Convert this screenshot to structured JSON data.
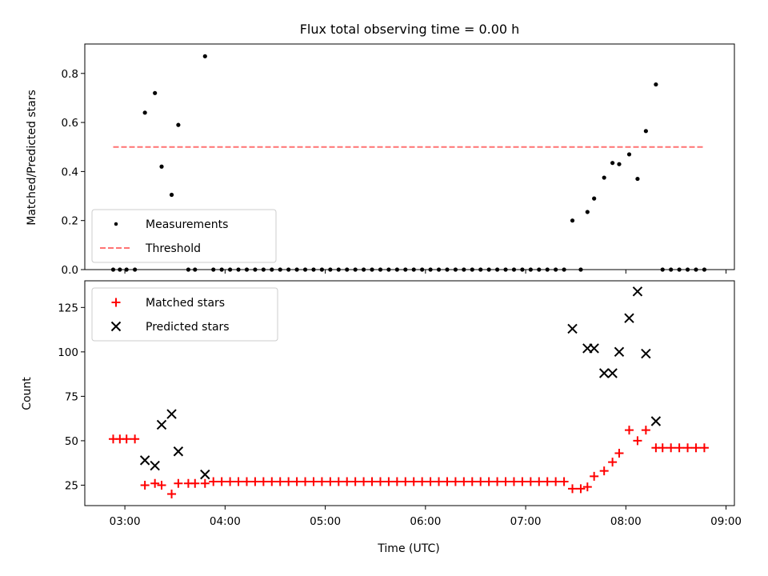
{
  "chart_data": [
    {
      "type": "scatter",
      "title": "Flux total observing time = 0.00 h",
      "xlabel": "",
      "ylabel": "Matched/Predicted stars",
      "xlim": [
        "02:36",
        "09:05"
      ],
      "ylim": [
        0,
        0.92
      ],
      "yticks": [
        0,
        0.2,
        0.4,
        0.6,
        0.8
      ],
      "ytick_labels": [
        "0.0",
        "0.2",
        "0.4",
        "0.6",
        "0.8"
      ],
      "legend_position": "lower left",
      "series": [
        {
          "name": "Measurements",
          "marker": "dot",
          "color": "#000000",
          "points": [
            [
              "02:53",
              0
            ],
            [
              "02:57",
              0
            ],
            [
              "03:01",
              0
            ],
            [
              "03:06",
              0
            ],
            [
              "03:12",
              0.64
            ],
            [
              "03:18",
              0.72
            ],
            [
              "03:22",
              0.42
            ],
            [
              "03:28",
              0.305
            ],
            [
              "03:32",
              0.59
            ],
            [
              "03:38",
              0
            ],
            [
              "03:42",
              0
            ],
            [
              "03:48",
              0.87
            ],
            [
              "03:53",
              0
            ],
            [
              "03:58",
              0
            ],
            [
              "04:03",
              0
            ],
            [
              "04:08",
              0
            ],
            [
              "04:13",
              0
            ],
            [
              "04:18",
              0
            ],
            [
              "04:23",
              0
            ],
            [
              "04:28",
              0
            ],
            [
              "04:33",
              0
            ],
            [
              "04:38",
              0
            ],
            [
              "04:43",
              0
            ],
            [
              "04:48",
              0
            ],
            [
              "04:53",
              0
            ],
            [
              "04:58",
              0
            ],
            [
              "05:03",
              0
            ],
            [
              "05:08",
              0
            ],
            [
              "05:13",
              0
            ],
            [
              "05:18",
              0
            ],
            [
              "05:23",
              0
            ],
            [
              "05:28",
              0
            ],
            [
              "05:33",
              0
            ],
            [
              "05:38",
              0
            ],
            [
              "05:43",
              0
            ],
            [
              "05:48",
              0
            ],
            [
              "05:53",
              0
            ],
            [
              "05:58",
              0
            ],
            [
              "06:03",
              0
            ],
            [
              "06:08",
              0
            ],
            [
              "06:13",
              0
            ],
            [
              "06:18",
              0
            ],
            [
              "06:23",
              0
            ],
            [
              "06:28",
              0
            ],
            [
              "06:33",
              0
            ],
            [
              "06:38",
              0
            ],
            [
              "06:43",
              0
            ],
            [
              "06:48",
              0
            ],
            [
              "06:53",
              0
            ],
            [
              "06:58",
              0
            ],
            [
              "07:03",
              0
            ],
            [
              "07:08",
              0
            ],
            [
              "07:13",
              0
            ],
            [
              "07:18",
              0
            ],
            [
              "07:23",
              0
            ],
            [
              "07:28",
              0.2
            ],
            [
              "07:33",
              0
            ],
            [
              "07:37",
              0.235
            ],
            [
              "07:41",
              0.29
            ],
            [
              "07:47",
              0.375
            ],
            [
              "07:52",
              0.435
            ],
            [
              "07:56",
              0.43
            ],
            [
              "08:02",
              0.47
            ],
            [
              "08:07",
              0.37
            ],
            [
              "08:12",
              0.565
            ],
            [
              "08:18",
              0.755
            ],
            [
              "08:22",
              0
            ],
            [
              "08:27",
              0
            ],
            [
              "08:32",
              0
            ],
            [
              "08:37",
              0
            ],
            [
              "08:42",
              0
            ],
            [
              "08:47",
              0
            ]
          ]
        },
        {
          "name": "Threshold",
          "marker": "dashed-line",
          "color": "#ff7373",
          "points": [
            [
              "02:53",
              0.5
            ],
            [
              "08:47",
              0.5
            ]
          ]
        }
      ]
    },
    {
      "type": "scatter",
      "title": "",
      "xlabel": "Time (UTC)",
      "ylabel": "Count",
      "xlim": [
        "02:36",
        "09:05"
      ],
      "ylim": [
        13.5,
        140
      ],
      "yticks": [
        25,
        50,
        75,
        100,
        125
      ],
      "ytick_labels": [
        "25",
        "50",
        "75",
        "100",
        "125"
      ],
      "xticks": [
        "03:00",
        "04:00",
        "05:00",
        "06:00",
        "07:00",
        "08:00",
        "09:00"
      ],
      "legend_position": "upper left",
      "series": [
        {
          "name": "Matched stars",
          "marker": "plus",
          "color": "#ff0000",
          "points": [
            [
              "02:53",
              51
            ],
            [
              "02:57",
              51
            ],
            [
              "03:01",
              51
            ],
            [
              "03:06",
              51
            ],
            [
              "03:12",
              25
            ],
            [
              "03:18",
              26
            ],
            [
              "03:22",
              25
            ],
            [
              "03:28",
              20
            ],
            [
              "03:32",
              26
            ],
            [
              "03:38",
              26
            ],
            [
              "03:42",
              26
            ],
            [
              "03:48",
              26
            ],
            [
              "03:53",
              27
            ],
            [
              "03:58",
              27
            ],
            [
              "04:03",
              27
            ],
            [
              "04:08",
              27
            ],
            [
              "04:13",
              27
            ],
            [
              "04:18",
              27
            ],
            [
              "04:23",
              27
            ],
            [
              "04:28",
              27
            ],
            [
              "04:33",
              27
            ],
            [
              "04:38",
              27
            ],
            [
              "04:43",
              27
            ],
            [
              "04:48",
              27
            ],
            [
              "04:53",
              27
            ],
            [
              "04:58",
              27
            ],
            [
              "05:03",
              27
            ],
            [
              "05:08",
              27
            ],
            [
              "05:13",
              27
            ],
            [
              "05:18",
              27
            ],
            [
              "05:23",
              27
            ],
            [
              "05:28",
              27
            ],
            [
              "05:33",
              27
            ],
            [
              "05:38",
              27
            ],
            [
              "05:43",
              27
            ],
            [
              "05:48",
              27
            ],
            [
              "05:53",
              27
            ],
            [
              "05:58",
              27
            ],
            [
              "06:03",
              27
            ],
            [
              "06:08",
              27
            ],
            [
              "06:13",
              27
            ],
            [
              "06:18",
              27
            ],
            [
              "06:23",
              27
            ],
            [
              "06:28",
              27
            ],
            [
              "06:33",
              27
            ],
            [
              "06:38",
              27
            ],
            [
              "06:43",
              27
            ],
            [
              "06:48",
              27
            ],
            [
              "06:53",
              27
            ],
            [
              "06:58",
              27
            ],
            [
              "07:03",
              27
            ],
            [
              "07:08",
              27
            ],
            [
              "07:13",
              27
            ],
            [
              "07:18",
              27
            ],
            [
              "07:23",
              27
            ],
            [
              "07:28",
              23
            ],
            [
              "07:33",
              23
            ],
            [
              "07:37",
              24
            ],
            [
              "07:41",
              30
            ],
            [
              "07:47",
              33
            ],
            [
              "07:52",
              38
            ],
            [
              "07:56",
              43
            ],
            [
              "08:02",
              56
            ],
            [
              "08:07",
              50
            ],
            [
              "08:12",
              56
            ],
            [
              "08:18",
              46
            ],
            [
              "08:22",
              46
            ],
            [
              "08:27",
              46
            ],
            [
              "08:32",
              46
            ],
            [
              "08:37",
              46
            ],
            [
              "08:42",
              46
            ],
            [
              "08:47",
              46
            ]
          ]
        },
        {
          "name": "Predicted stars",
          "marker": "x",
          "color": "#000000",
          "points": [
            [
              "03:12",
              39
            ],
            [
              "03:18",
              36
            ],
            [
              "03:22",
              59
            ],
            [
              "03:28",
              65
            ],
            [
              "03:32",
              44
            ],
            [
              "03:48",
              31
            ],
            [
              "07:28",
              113
            ],
            [
              "07:37",
              102
            ],
            [
              "07:41",
              102
            ],
            [
              "07:47",
              88
            ],
            [
              "07:52",
              88
            ],
            [
              "07:56",
              100
            ],
            [
              "08:02",
              119
            ],
            [
              "08:07",
              134
            ],
            [
              "08:12",
              99
            ],
            [
              "08:18",
              61
            ]
          ]
        }
      ]
    }
  ]
}
